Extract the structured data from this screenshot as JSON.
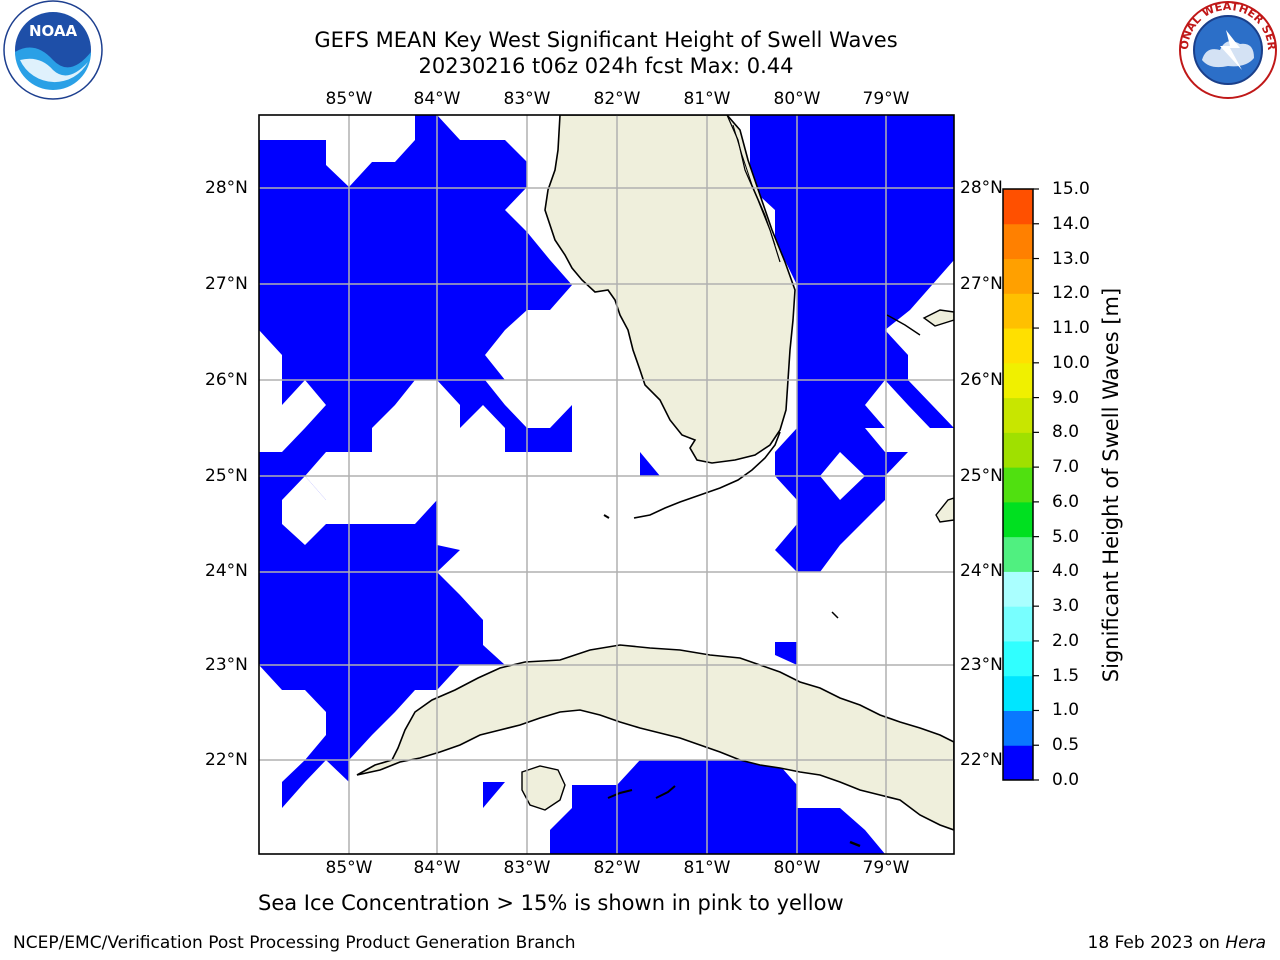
{
  "title": {
    "line1": "GEFS MEAN Key West Significant Height of Swell Waves",
    "line2": "20230216 t06z 024h fcst   Max: 0.44"
  },
  "map": {
    "lon_labels": [
      "85°W",
      "84°W",
      "83°W",
      "82°W",
      "81°W",
      "80°W",
      "79°W"
    ],
    "lat_labels": [
      "28°N",
      "27°N",
      "26°N",
      "25°N",
      "24°N",
      "23°N",
      "22°N"
    ],
    "land_color": "#efefdc",
    "wave_color": "#0000ff",
    "grid_color": "#b0b0b0"
  },
  "colorbar": {
    "label": "Significant Height of Swell Waves [m]",
    "ticks": [
      "0.0",
      "0.5",
      "1.0",
      "1.5",
      "2.0",
      "3.0",
      "4.0",
      "5.0",
      "6.0",
      "7.0",
      "8.0",
      "9.0",
      "10.0",
      "11.0",
      "12.0",
      "13.0",
      "14.0",
      "15.0"
    ],
    "colors": [
      "#0000ff",
      "#0a78ff",
      "#00e6ff",
      "#30ffff",
      "#78ffff",
      "#aaffff",
      "#50f080",
      "#00e020",
      "#50e010",
      "#a0e000",
      "#c8e600",
      "#f0f000",
      "#ffe000",
      "#ffc000",
      "#ffa000",
      "#ff8000",
      "#ff5000",
      "#ff2000",
      "#ff0000"
    ]
  },
  "footer": {
    "note": "Sea Ice Concentration > 15% is shown in pink to yellow",
    "left": "NCEP/EMC/Verification Post Processing Product Generation Branch",
    "right_prefix": "18 Feb 2023 on ",
    "right_machine": "Hera"
  },
  "logos": {
    "noaa_text": "NOAA",
    "nws_text": "NATIONAL WEATHER SERVICE"
  }
}
